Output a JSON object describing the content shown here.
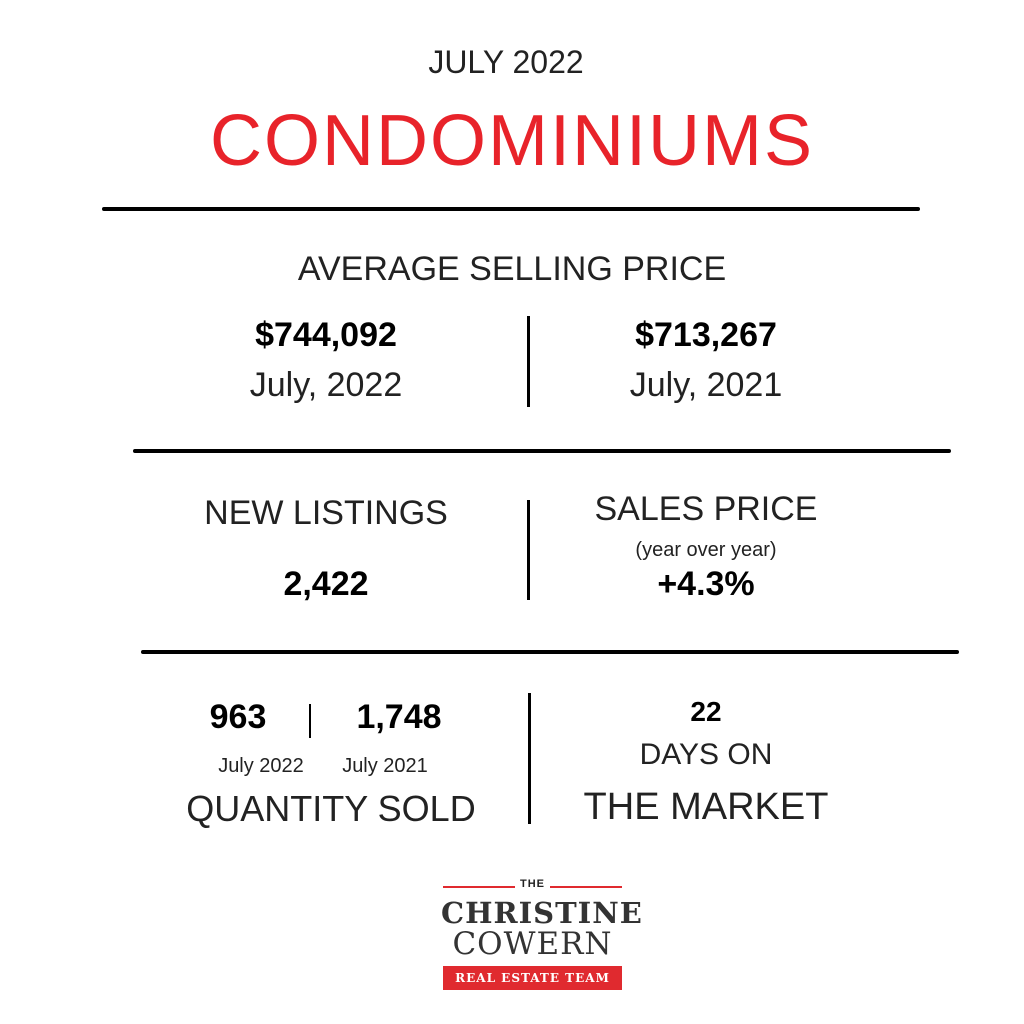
{
  "header": {
    "month": "JULY 2022",
    "title": "CONDOMINIUMS",
    "title_color": "#e8232a"
  },
  "average_selling_price": {
    "heading": "AVERAGE SELLING PRICE",
    "current": {
      "value": "$744,092",
      "date": "July, 2022"
    },
    "previous": {
      "value": "$713,267",
      "date": "July, 2021"
    }
  },
  "new_listings": {
    "heading": "NEW LISTINGS",
    "value": "2,422"
  },
  "sales_price": {
    "heading": "SALES PRICE",
    "subheading": "(year over year)",
    "value": "+4.3%"
  },
  "quantity_sold": {
    "current": {
      "value": "963",
      "date": "July 2022"
    },
    "previous": {
      "value": "1,748",
      "date": "July 2021"
    },
    "label": "QUANTITY SOLD"
  },
  "days_on_market": {
    "value": "22",
    "label_line1": "DAYS ON",
    "label_line2": "THE MARKET"
  },
  "logo": {
    "the": "THE",
    "line1": "CHRISTINE",
    "line2": "COWERN",
    "badge": "REAL ESTATE TEAM",
    "accent_color": "#e02a2f"
  }
}
